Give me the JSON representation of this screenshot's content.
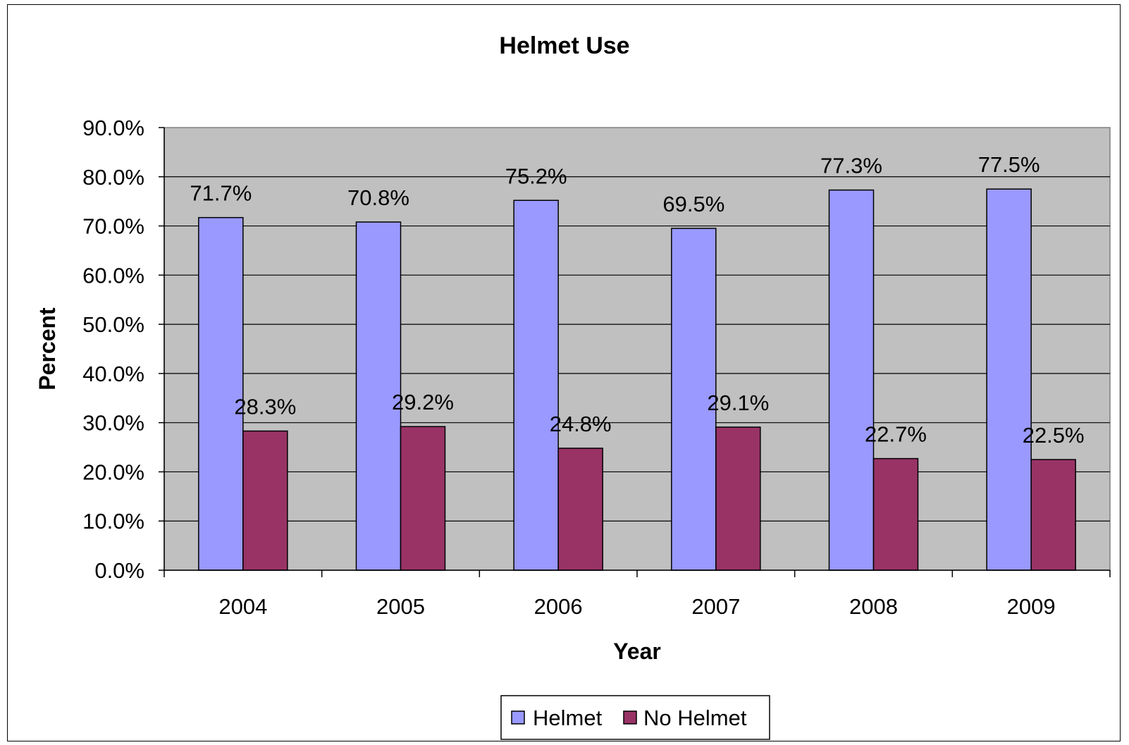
{
  "chart_data": {
    "type": "bar",
    "title": "Helmet Use",
    "xlabel": "Year",
    "ylabel": "Percent",
    "categories": [
      "2004",
      "2005",
      "2006",
      "2007",
      "2008",
      "2009"
    ],
    "series": [
      {
        "name": "Helmet",
        "color": "#9999FF",
        "values": [
          71.7,
          70.8,
          75.2,
          69.5,
          77.3,
          77.5
        ],
        "labels": [
          "71.7%",
          "70.8%",
          "75.2%",
          "69.5%",
          "77.3%",
          "77.5%"
        ]
      },
      {
        "name": "No Helmet",
        "color": "#993366",
        "values": [
          28.3,
          29.2,
          24.8,
          29.1,
          22.7,
          22.5
        ],
        "labels": [
          "28.3%",
          "29.2%",
          "24.8%",
          "29.1%",
          "22.7%",
          "22.5%"
        ]
      }
    ],
    "ylim": [
      0,
      90
    ],
    "yticks": [
      0,
      10,
      20,
      30,
      40,
      50,
      60,
      70,
      80,
      90
    ],
    "ytick_labels": [
      "0.0%",
      "10.0%",
      "20.0%",
      "30.0%",
      "40.0%",
      "50.0%",
      "60.0%",
      "70.0%",
      "80.0%",
      "90.0%"
    ],
    "grid": true,
    "plot_background": "#C0C0C0",
    "legend_position": "bottom"
  }
}
